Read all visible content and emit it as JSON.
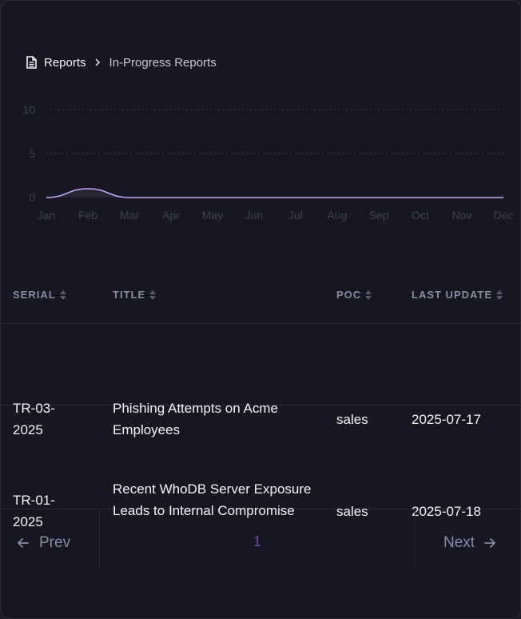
{
  "breadcrumb": {
    "root": "Reports",
    "current": "In-Progress Reports",
    "icon": "document-icon",
    "separator_icon": "chevron-right-icon"
  },
  "chart_data": {
    "type": "area",
    "categories": [
      "Jan",
      "Feb",
      "Mar",
      "Apr",
      "May",
      "Jun",
      "Jul",
      "Aug",
      "Sep",
      "Oct",
      "Nov",
      "Dec"
    ],
    "series": [
      {
        "values": [
          0,
          1,
          0,
          0,
          0,
          0,
          0,
          0,
          0,
          0,
          0,
          0
        ],
        "color": "#c6a8f0"
      }
    ],
    "y_ticks": [
      "0",
      "5",
      "10"
    ],
    "ylim": [
      0,
      10
    ],
    "grid": "dotted horizontal"
  },
  "table": {
    "headers": {
      "serial": "SERIAL",
      "title": "TITLE",
      "poc": "POC",
      "last_update": "LAST UPDATE"
    },
    "rows": [
      {
        "serial": "TR-03-2025",
        "title": "Phishing Attempts on Acme Employees",
        "poc": "sales",
        "last_update": "2025-07-17"
      },
      {
        "serial": "TR-01-2025",
        "title": "Recent WhoDB Server Exposure Leads to Internal Compromise",
        "poc": "sales",
        "last_update": "2025-07-18"
      }
    ]
  },
  "pagination": {
    "prev_label": "Prev",
    "next_label": "Next",
    "current_page": "1"
  },
  "colors": {
    "background": "#171723",
    "line": "#c6a8f0",
    "page_number": "#6a4fa0",
    "header_text": "#8a8aa6"
  }
}
